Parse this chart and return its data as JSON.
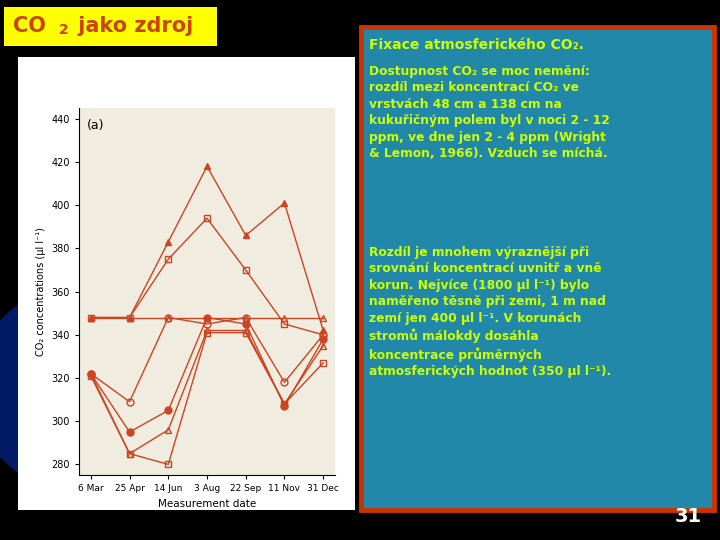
{
  "background_color": "#000000",
  "title_box_color": "#ffff00",
  "title_text_color": "#cc4400",
  "info_box_color": "#2288aa",
  "info_box_border": "#cc3300",
  "info_title": "Fixace atmosferického CO₂.",
  "info_title_color": "#ccff00",
  "info_body1": "Dostupnost CO₂ se moc nemění:\nrozdíl mezi koncentrací CO₂ ve\nvrstvách 48 cm a 138 cm na\nkukuřičným polem byl v noci 2 - 12\nppm, ve dne jen 2 - 4 ppm (Wright\n& Lemon, 1966). Vzduch se míchá.",
  "info_body2": "Rozdíl je mnohem výraznější při\nsrovnání koncentrací uvnitř a vně\nkorun. Nejvíce (1800 μl l⁻¹) bylo\nnaměřeno těsně při zemi, 1 m nad\nzemí jen 400 μl l⁻¹. V korunách\nstromů málokdy dosáhla\nkoncentrace průměrných\natmosferických hodnot (350 μl l⁻¹).",
  "info_body_color": "#ccff00",
  "page_number": "31",
  "page_number_color": "#ffffff",
  "chart_bg": "#f0ece0",
  "chart_label_a": "(a)",
  "xlabel": "Measurement date",
  "ylabel": "CO₂ concentrations (μl l⁻¹)",
  "xtick_labels": [
    "6 Mar",
    "25 Apr",
    "14 Jun",
    "3 Aug",
    "22 Sep",
    "11 Nov",
    "31 Dec"
  ],
  "ytick_labels": [
    280,
    300,
    320,
    340,
    360,
    380,
    400,
    420,
    440
  ],
  "line_color": "#cc4422",
  "x_positions": [
    0,
    1,
    2,
    3,
    4,
    5,
    6
  ],
  "series": [
    {
      "marker": "^",
      "filled": true,
      "y": [
        348,
        348,
        383,
        418,
        386,
        401,
        342
      ]
    },
    {
      "marker": "s",
      "filled": false,
      "y": [
        348,
        348,
        375,
        394,
        370,
        345,
        340
      ]
    },
    {
      "marker": "o",
      "filled": false,
      "y": [
        322,
        309,
        348,
        345,
        348,
        318,
        340
      ]
    },
    {
      "marker": "o",
      "filled": true,
      "y": [
        322,
        295,
        305,
        348,
        345,
        307,
        338
      ]
    },
    {
      "marker": "^",
      "filled": false,
      "y": [
        322,
        285,
        296,
        342,
        342,
        308,
        335
      ]
    },
    {
      "marker": "s",
      "filled": false,
      "y": [
        321,
        285,
        280,
        341,
        341,
        308,
        327
      ]
    }
  ],
  "flat_series": {
    "marker": "^",
    "filled": false,
    "y": [
      348,
      348,
      348,
      348,
      348,
      348,
      348
    ]
  }
}
